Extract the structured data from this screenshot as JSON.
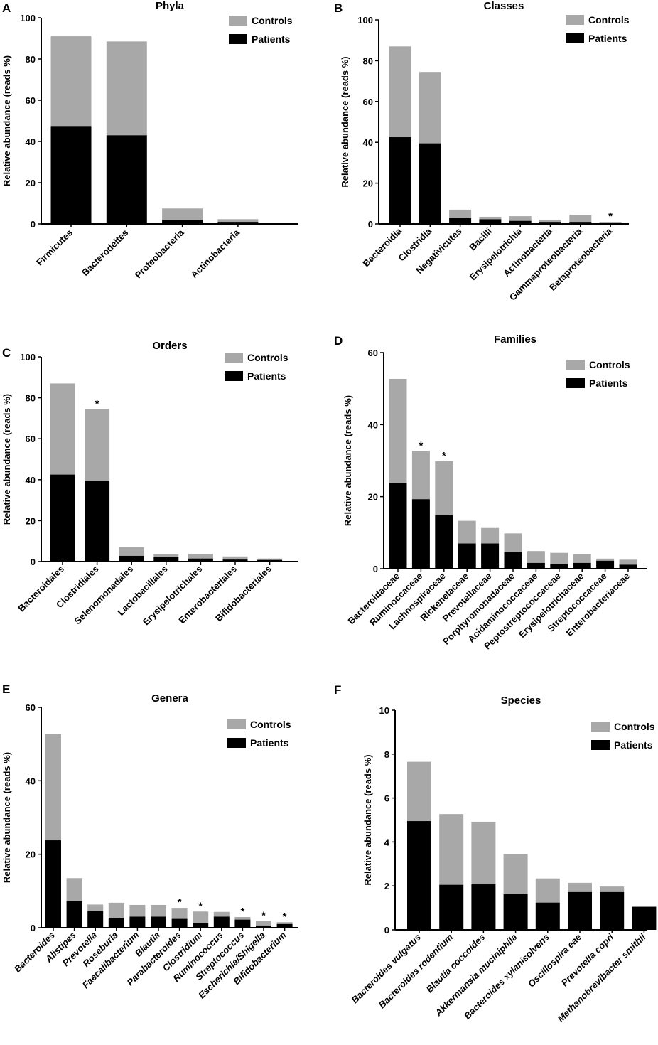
{
  "colors": {
    "controls": "#a8a8a8",
    "patients": "#000000",
    "axis": "#000000"
  },
  "legend": {
    "controls": "Controls",
    "patients": "Patients"
  },
  "chart_data": [
    {
      "panel": "A",
      "type": "bar",
      "stacked": true,
      "title": "Phyla",
      "ylabel": "Relative abundance (reads %)",
      "ylim": [
        0,
        100
      ],
      "yticks": [
        0,
        20,
        40,
        60,
        80,
        100
      ],
      "categories": [
        "Firmicutes",
        "Bacterodeites",
        "Proteobacteria",
        "Actinobacteria"
      ],
      "italic": false,
      "series": [
        {
          "name": "Patients",
          "values": [
            47.5,
            43,
            2,
            1
          ]
        },
        {
          "name": "Controls",
          "values": [
            43.5,
            45.5,
            5.5,
            1.3
          ]
        }
      ],
      "significant": [
        false,
        false,
        false,
        false
      ]
    },
    {
      "panel": "B",
      "type": "bar",
      "stacked": true,
      "title": "Classes",
      "ylabel": "Relative abundance (reads %)",
      "ylim": [
        0,
        100
      ],
      "yticks": [
        0,
        20,
        40,
        60,
        80,
        100
      ],
      "categories": [
        "Bacteroidia",
        "Clostridia",
        "Negativicutes",
        "Bacilli",
        "Erysipelotrichia",
        "Actinobacteria",
        "Gammaproteobacteria",
        "Betaproteobacteria"
      ],
      "italic": false,
      "series": [
        {
          "name": "Patients",
          "values": [
            42.5,
            39.5,
            2.8,
            2.3,
            1.5,
            1.0,
            1.0,
            0.3
          ]
        },
        {
          "name": "Controls",
          "values": [
            44.5,
            35,
            4.2,
            1.2,
            2.3,
            1.0,
            3.5,
            0.7
          ]
        }
      ],
      "significant": [
        false,
        false,
        false,
        false,
        false,
        false,
        false,
        true
      ]
    },
    {
      "panel": "C",
      "type": "bar",
      "stacked": true,
      "title": "Orders",
      "ylabel": "Relative abundance (reads %)",
      "ylim": [
        0,
        100
      ],
      "yticks": [
        0,
        20,
        40,
        60,
        80,
        100
      ],
      "categories": [
        "Bacteroidales",
        "Clostridiales",
        "Selenomonadales",
        "Lactobacillales",
        "Erysipelotrichales",
        "Enterobacteriales",
        "Bifidobacteriales"
      ],
      "italic": false,
      "series": [
        {
          "name": "Patients",
          "values": [
            42.5,
            39.5,
            2.8,
            2.3,
            1.5,
            1.0,
            0.8
          ]
        },
        {
          "name": "Controls",
          "values": [
            44.5,
            35,
            4.2,
            1.2,
            2.3,
            1.5,
            0.7
          ]
        }
      ],
      "significant": [
        false,
        true,
        false,
        false,
        false,
        false,
        false
      ]
    },
    {
      "panel": "D",
      "type": "bar",
      "stacked": true,
      "title": "Families",
      "ylabel": "Relative abundance (reads %)",
      "ylim": [
        0,
        60
      ],
      "yticks": [
        0,
        20,
        40,
        60
      ],
      "categories": [
        "Bacteroidaceae",
        "Ruminoccaceae",
        "Lachnospiraceae",
        "Rickenelaceae",
        "Prevotellaceae",
        "Porphyromonadaceae",
        "Acidaminococcaceae",
        "Peptostreptococcaceae",
        "Erysipelotrichaceae",
        "Streptococcaceae",
        "Enterobacteriaceae"
      ],
      "italic": false,
      "series": [
        {
          "name": "Patients",
          "values": [
            23.8,
            19.3,
            14.8,
            7,
            7,
            4.6,
            1.6,
            1.2,
            1.6,
            2.2,
            1.1
          ]
        },
        {
          "name": "Controls",
          "values": [
            28.9,
            13.4,
            15,
            6.3,
            4.3,
            5.2,
            3.3,
            3.2,
            2.4,
            0.6,
            1.4
          ]
        }
      ],
      "significant": [
        false,
        true,
        true,
        false,
        false,
        false,
        false,
        false,
        false,
        false,
        false
      ]
    },
    {
      "panel": "E",
      "type": "bar",
      "stacked": true,
      "title": "Genera",
      "ylabel": "Relative abundance (reads %)",
      "ylim": [
        0,
        60
      ],
      "yticks": [
        0,
        20,
        40,
        60
      ],
      "categories": [
        "Bacteroides",
        "Alistipes",
        "Prevotella",
        "Roseburia",
        "Faecalibacterium",
        "Blautia",
        "Parabacteroides",
        "Clostridium",
        "Ruminococcus",
        "Streptococcus",
        "Escherichia/Shigella",
        "Bifidobacterium"
      ],
      "italic": true,
      "series": [
        {
          "name": "Patients",
          "values": [
            23.8,
            7.2,
            4.5,
            2.7,
            3,
            3,
            2.4,
            1.2,
            3,
            2.2,
            0.6,
            1
          ]
        },
        {
          "name": "Controls",
          "values": [
            28.9,
            6.3,
            1.8,
            4.1,
            3.2,
            3.2,
            3,
            3.2,
            1.3,
            0.7,
            1.2,
            0.5
          ]
        }
      ],
      "significant": [
        false,
        false,
        false,
        false,
        false,
        false,
        true,
        true,
        false,
        true,
        true,
        true
      ]
    },
    {
      "panel": "F",
      "type": "bar",
      "stacked": true,
      "title": "Species",
      "ylabel": "Relative abundance (reads %)",
      "ylim": [
        0,
        10
      ],
      "yticks": [
        0,
        2,
        4,
        6,
        8,
        10
      ],
      "categories": [
        "Bacteroides vulgatus",
        "Bacteroides rodentium",
        "Blautia coccoides",
        "Akkermansia muciniphila",
        "Bacteroides xylanisolvens",
        "Oscillospira eae",
        "Prevotella copri",
        "Methanobrevibacter smithii"
      ],
      "italic": true,
      "series": [
        {
          "name": "Patients",
          "values": [
            4.95,
            2.05,
            2.07,
            1.62,
            1.24,
            1.72,
            1.72,
            1.05
          ]
        },
        {
          "name": "Controls",
          "values": [
            2.7,
            3.22,
            2.85,
            1.83,
            1.1,
            0.42,
            0.25,
            0
          ]
        }
      ],
      "significant": [
        false,
        false,
        false,
        false,
        false,
        false,
        false,
        false
      ]
    }
  ]
}
